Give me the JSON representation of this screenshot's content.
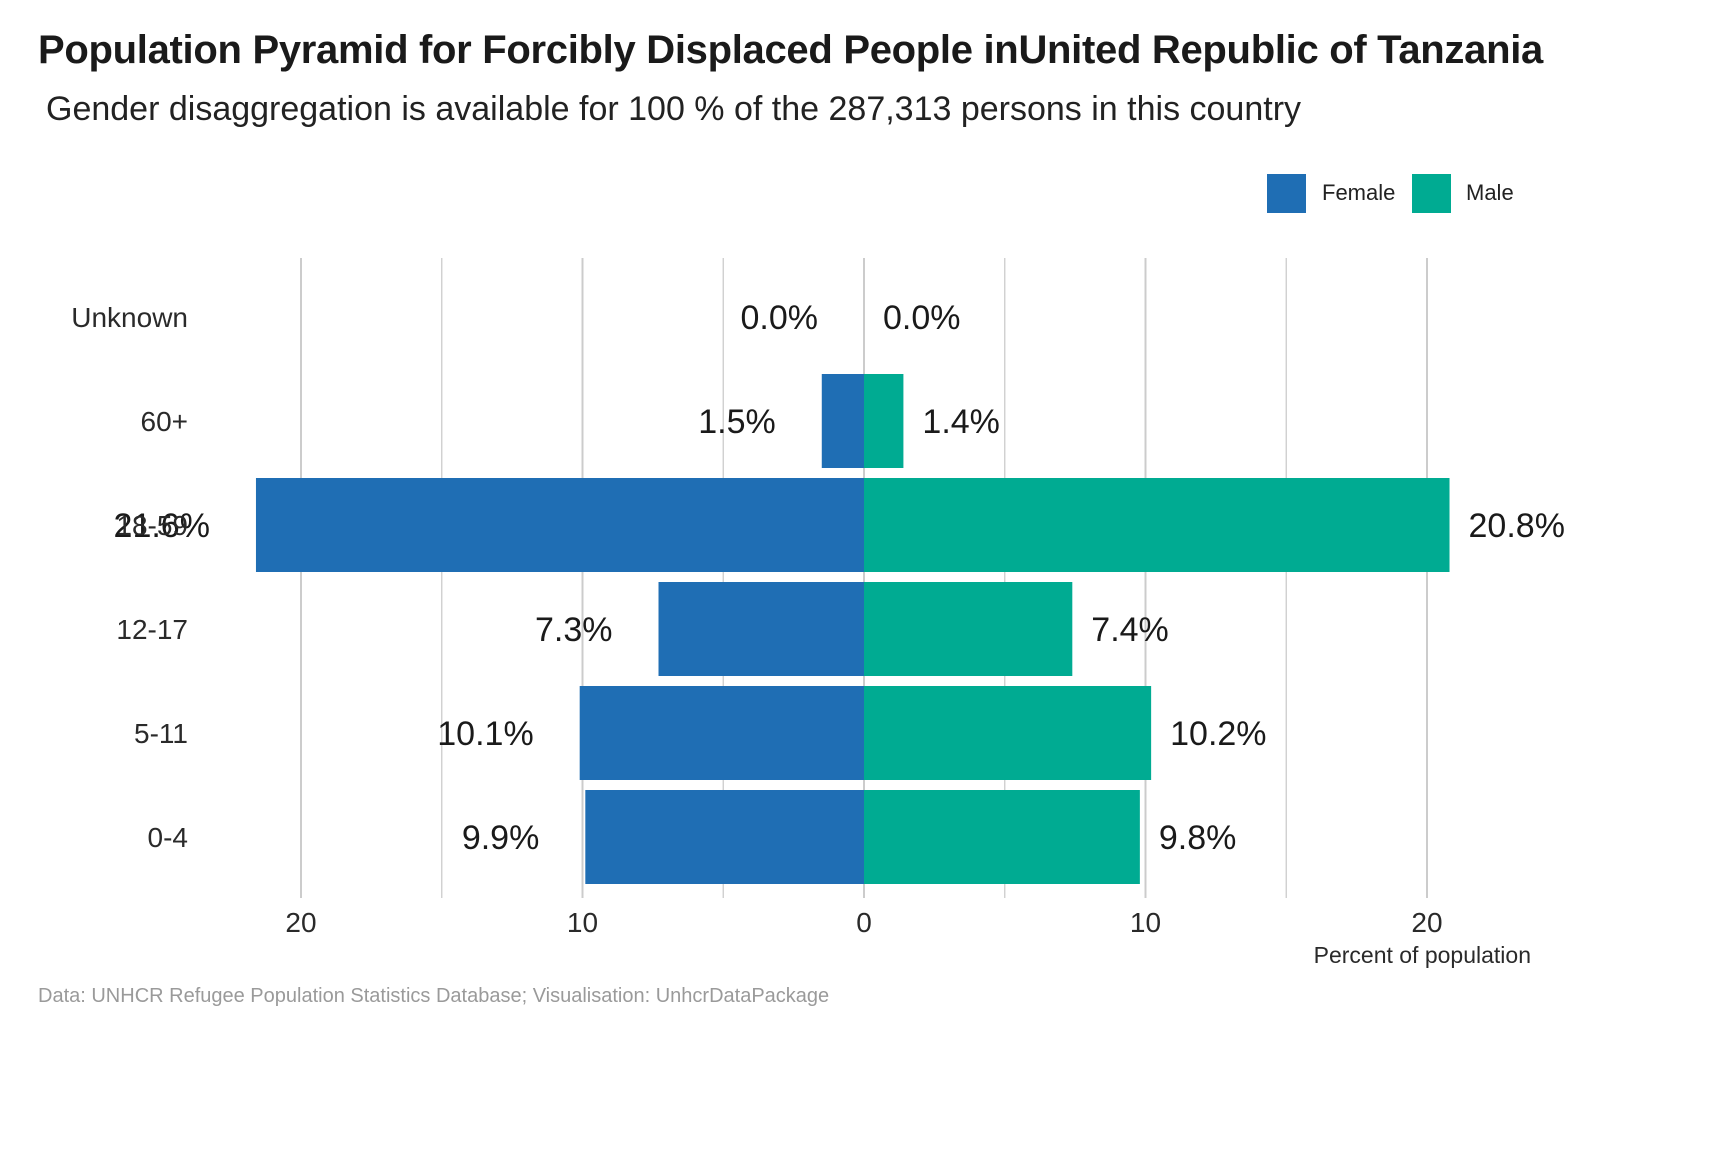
{
  "title": "Population Pyramid for Forcibly Displaced People inUnited Republic of Tanzania",
  "subtitle": "Gender disaggregation is available for 100 % of the 287,313 persons in this country",
  "caption": "Data: UNHCR Refugee Population Statistics Database; Visualisation: UnhcrDataPackage",
  "legend": {
    "female": "Female",
    "male": "Male"
  },
  "colors": {
    "female": "#1f6eb4",
    "male": "#00ab92",
    "grid": "#cccccc"
  },
  "chart_data": {
    "type": "bar",
    "orientation": "horizontal",
    "layout": "population-pyramid",
    "title": "Population Pyramid for Forcibly Displaced People inUnited Republic of Tanzania",
    "subtitle": "Gender disaggregation is available for 100 % of the 287,313 persons in this country",
    "xlabel": "Percent of population",
    "ylabel": "",
    "categories": [
      "Unknown",
      "60+",
      "18-59",
      "12-17",
      "5-11",
      "0-4"
    ],
    "series": [
      {
        "name": "Female",
        "values": [
          0.0,
          1.5,
          21.6,
          7.3,
          10.1,
          9.9
        ],
        "labels": [
          "0.0%",
          "1.5%",
          "21.6%",
          "7.3%",
          "10.1%",
          "9.9%"
        ]
      },
      {
        "name": "Male",
        "values": [
          0.0,
          1.4,
          20.8,
          7.4,
          10.2,
          9.8
        ],
        "labels": [
          "0.0%",
          "1.4%",
          "20.8%",
          "7.4%",
          "10.2%",
          "9.8%"
        ]
      }
    ],
    "xlim": [
      -20,
      20
    ],
    "x_ticks": [
      -20,
      -10,
      0,
      10,
      20
    ],
    "x_tick_labels": [
      "20",
      "10",
      "0",
      "10",
      "20"
    ],
    "grid": true,
    "legend_position": "top-right"
  }
}
